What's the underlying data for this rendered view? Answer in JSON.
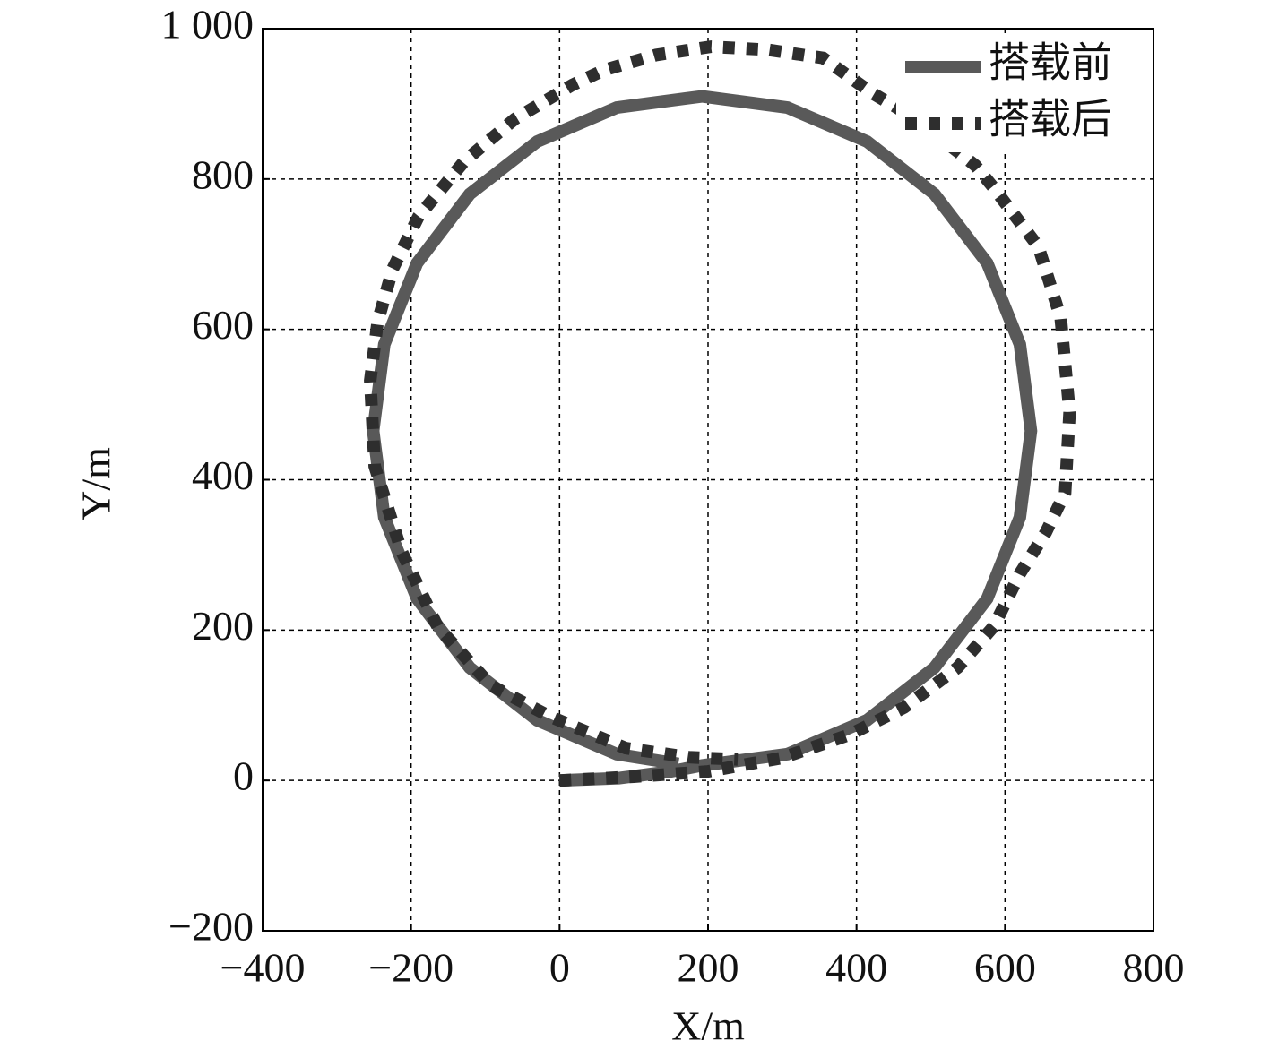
{
  "chart_data": {
    "type": "line",
    "xlabel": "X/m",
    "ylabel": "Y/m",
    "xlim": [
      -400,
      800
    ],
    "ylim": [
      -200,
      1000
    ],
    "xticks": [
      {
        "value": -400,
        "label": "−400"
      },
      {
        "value": -200,
        "label": "−200"
      },
      0,
      200,
      400,
      600,
      800
    ],
    "yticks": [
      {
        "value": -200,
        "label": "−200"
      },
      0,
      200,
      400,
      600,
      800,
      {
        "value": 1000,
        "label": "1 000"
      }
    ],
    "grid": true,
    "legend": "upper right",
    "series": [
      {
        "name": "搭载前",
        "color": "#595959",
        "style": "solid",
        "x": [
          0,
          80,
          150,
          192,
          307,
          414,
          505,
          576,
          620,
          635,
          620,
          576,
          505,
          414,
          307,
          192,
          77,
          -30,
          -121,
          -192,
          -236,
          -251,
          -236,
          -192,
          -121,
          -30,
          77,
          160
        ],
        "values": [
          0,
          3,
          12,
          20,
          35,
          80,
          150,
          242,
          350,
          465,
          580,
          688,
          780,
          850,
          895,
          910,
          895,
          850,
          780,
          688,
          580,
          465,
          350,
          242,
          150,
          80,
          35,
          22
        ]
      },
      {
        "name": "搭载后",
        "color": "#2e2e2e",
        "style": "dotted",
        "x": [
          0,
          100,
          200,
          300,
          391,
          464,
          536,
          585,
          620,
          655,
          681,
          687,
          675,
          645,
          585,
          560,
          480,
          420,
          355,
          280,
          204,
          130,
          60,
          17,
          -60,
          -128,
          -190,
          -225,
          -245,
          -255,
          -249,
          -213,
          -164,
          -92,
          -13,
          89,
          174,
          240
        ],
        "values": [
          0,
          5,
          12,
          30,
          61,
          97,
          150,
          205,
          275,
          330,
          383,
          490,
          615,
          710,
          788,
          818,
          880,
          915,
          961,
          972,
          976,
          965,
          945,
          925,
          880,
          824,
          750,
          680,
          610,
          532,
          418,
          305,
          204,
          126,
          85,
          43,
          31,
          28
        ]
      }
    ]
  }
}
